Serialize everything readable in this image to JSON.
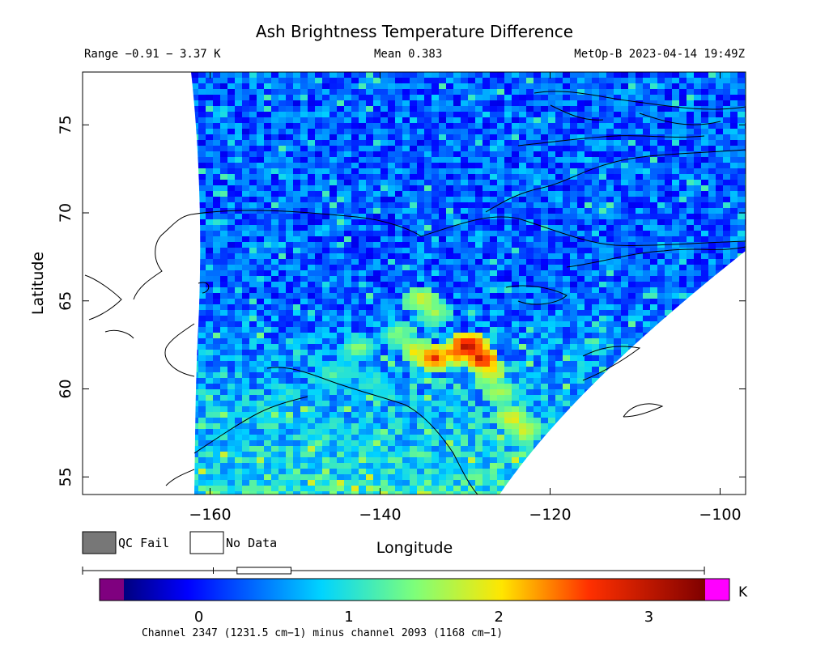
{
  "header": {
    "title": "Ash Brightness Temperature Difference",
    "range": "Range −0.91 − 3.37 K",
    "mean": "Mean 0.383",
    "satellite_time": "MetOp-B 2023-04-14 19:49Z"
  },
  "legend": {
    "qc_fail": "QC Fail",
    "no_data": "No Data",
    "qc_fail_color": "#777777",
    "no_data_color": "#ffffff"
  },
  "colorbar": {
    "unit": "K",
    "ticks": [
      "0",
      "1",
      "2",
      "3"
    ],
    "tick_values": [
      0,
      1,
      2,
      3
    ],
    "min": -0.5,
    "max": 3.375,
    "under_color": "#7f007f",
    "over_color": "#ff00ff",
    "caption": "Channel 2347 (1231.5 cm−1) minus channel 2093 (1168 cm−1)"
  },
  "boxplot": {
    "whisker_min": -0.5,
    "q1": -0.35,
    "median": 0.35,
    "q3": 0.55,
    "whisker_max": 3.37
  },
  "chart_data": {
    "type": "heatmap",
    "title": "Ash Brightness Temperature Difference",
    "xlabel": "Longitude",
    "ylabel": "Latitude",
    "xlim": [
      -175,
      -97
    ],
    "ylim": [
      54,
      78
    ],
    "xticks": [
      -160,
      -140,
      -120,
      -100
    ],
    "yticks": [
      55,
      60,
      65,
      70,
      75
    ],
    "xtick_labels": [
      "−160",
      "−140",
      "−120",
      "−100"
    ],
    "ytick_labels": [
      "55",
      "60",
      "65",
      "70",
      "75"
    ],
    "value_range": [
      -0.91,
      3.37
    ],
    "mean": 0.383,
    "units": "K",
    "swath_background_value": 0.3,
    "ash_plume": [
      {
        "lon": -135.5,
        "lat": 65.2,
        "value": 2.0
      },
      {
        "lon": -134,
        "lat": 64.5,
        "value": 1.7
      },
      {
        "lon": -138,
        "lat": 63.2,
        "value": 1.6
      },
      {
        "lon": -136,
        "lat": 62.3,
        "value": 2.1
      },
      {
        "lon": -134,
        "lat": 61.9,
        "value": 2.8
      },
      {
        "lon": -131.5,
        "lat": 62.2,
        "value": 2.6
      },
      {
        "lon": -130,
        "lat": 62.6,
        "value": 3.3
      },
      {
        "lon": -128.5,
        "lat": 61.9,
        "value": 3.0
      },
      {
        "lon": -127.5,
        "lat": 61.2,
        "value": 2.2
      },
      {
        "lon": -126.5,
        "lat": 60.0,
        "value": 1.8
      },
      {
        "lon": -125,
        "lat": 58.5,
        "value": 2.0
      },
      {
        "lon": -123.5,
        "lat": 57.8,
        "value": 1.9
      },
      {
        "lon": -143,
        "lat": 62.5,
        "value": 1.5
      },
      {
        "lon": -146,
        "lat": 61.0,
        "value": 1.3
      },
      {
        "lon": -141,
        "lat": 60.5,
        "value": 1.2
      }
    ]
  }
}
